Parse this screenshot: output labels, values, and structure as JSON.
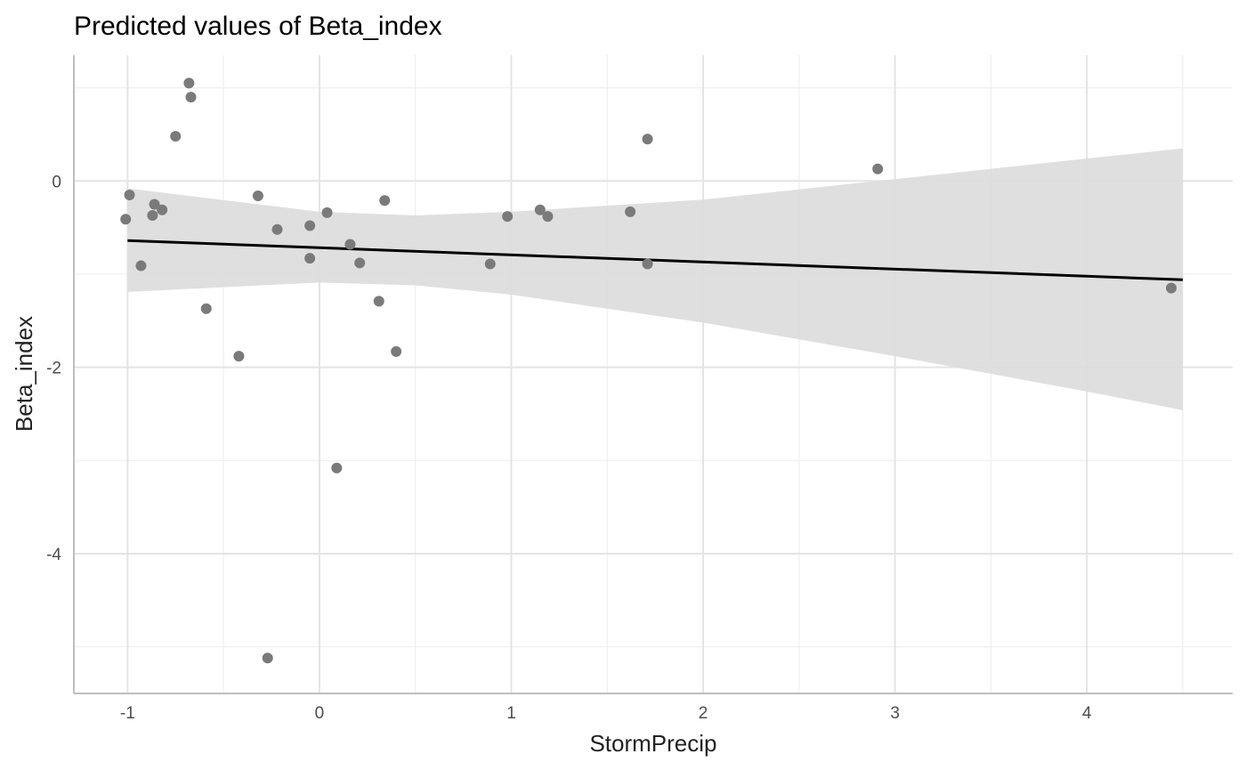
{
  "chart_data": {
    "type": "scatter",
    "title": "Predicted values of Beta_index",
    "xlabel": "StormPrecip",
    "ylabel": "Beta_index",
    "xlim": [
      -1.28,
      4.76
    ],
    "ylim": [
      -5.5,
      1.35
    ],
    "x_ticks": [
      -1,
      0,
      1,
      2,
      3,
      4
    ],
    "x_tick_labels": [
      "-1",
      "0",
      "1",
      "2",
      "3",
      "4"
    ],
    "x_minor_ticks": [
      -0.5,
      0.5,
      1.5,
      2.5,
      3.5,
      4.5
    ],
    "y_ticks": [
      0,
      -2,
      -4
    ],
    "y_tick_labels": [
      "0",
      "-2",
      "-4"
    ],
    "y_minor_ticks": [
      1,
      -1,
      -3,
      -5
    ],
    "grid": true,
    "points": [
      {
        "x": -1.01,
        "y": -0.41
      },
      {
        "x": -0.99,
        "y": -0.15
      },
      {
        "x": -0.93,
        "y": -0.91
      },
      {
        "x": -0.87,
        "y": -0.37
      },
      {
        "x": -0.86,
        "y": -0.25
      },
      {
        "x": -0.82,
        "y": -0.31
      },
      {
        "x": -0.75,
        "y": 0.48
      },
      {
        "x": -0.68,
        "y": 1.05
      },
      {
        "x": -0.67,
        "y": 0.9
      },
      {
        "x": -0.59,
        "y": -1.37
      },
      {
        "x": -0.42,
        "y": -1.88
      },
      {
        "x": -0.32,
        "y": -0.16
      },
      {
        "x": -0.22,
        "y": -0.52
      },
      {
        "x": -0.27,
        "y": -5.12
      },
      {
        "x": -0.05,
        "y": -0.48
      },
      {
        "x": -0.05,
        "y": -0.83
      },
      {
        "x": 0.04,
        "y": -0.34
      },
      {
        "x": 0.09,
        "y": -3.08
      },
      {
        "x": 0.16,
        "y": -0.68
      },
      {
        "x": 0.21,
        "y": -0.88
      },
      {
        "x": 0.31,
        "y": -1.29
      },
      {
        "x": 0.34,
        "y": -0.21
      },
      {
        "x": 0.4,
        "y": -1.83
      },
      {
        "x": 0.89,
        "y": -0.89
      },
      {
        "x": 0.98,
        "y": -0.38
      },
      {
        "x": 1.15,
        "y": -0.31
      },
      {
        "x": 1.19,
        "y": -0.38
      },
      {
        "x": 1.62,
        "y": -0.33
      },
      {
        "x": 1.71,
        "y": 0.45
      },
      {
        "x": 1.71,
        "y": -0.89
      },
      {
        "x": 2.91,
        "y": 0.13
      },
      {
        "x": 4.44,
        "y": -1.15
      }
    ],
    "fit_line": {
      "x": [
        -1.0,
        4.5
      ],
      "y": [
        -0.64,
        -1.06
      ]
    },
    "confidence_band": {
      "x": [
        -1.0,
        0.0,
        0.5,
        1.0,
        2.0,
        3.0,
        4.0,
        4.5
      ],
      "upper": [
        -0.08,
        -0.33,
        -0.37,
        -0.33,
        -0.2,
        0.02,
        0.24,
        0.35
      ],
      "lower": [
        -1.19,
        -1.09,
        -1.12,
        -1.22,
        -1.52,
        -1.88,
        -2.26,
        -2.46
      ]
    },
    "colors": {
      "points": "#7a7a7a",
      "fit_line": "#000000",
      "band": "#dcdcdc",
      "grid_major": "#e4e4e4",
      "grid_minor": "#efefef",
      "axis": "#bebebe"
    }
  }
}
